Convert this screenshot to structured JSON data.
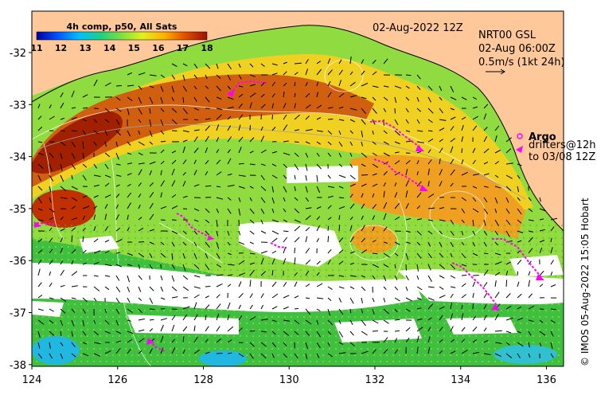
{
  "map": {
    "date_title": "02-Aug-2022 12Z",
    "product_line1": "NRT00 GSL",
    "product_line2": "02-Aug 06:00Z",
    "scale_label": "0.5m/s (1kt 24h)",
    "colorbar_title": "4h comp, p50, All Sats",
    "colorbar_ticks": [
      "11",
      "12",
      "13",
      "14",
      "15",
      "16",
      "17",
      "18"
    ],
    "legend_argo": "Argo",
    "legend_drifters_line1": "drifters@12h",
    "legend_drifters_line2": "to 03/08 12Z",
    "credit": "© IMOS 05-Aug-2022 15:05 Hobart",
    "lon_ticks": [
      "124",
      "126",
      "128",
      "130",
      "132",
      "134",
      "136"
    ],
    "lat_ticks": [
      "-32",
      "-33",
      "-34",
      "-35",
      "-36",
      "-37",
      "-38"
    ],
    "colors": {
      "land": "#fec89a",
      "no_data": "#ffffff",
      "drifter": "#ff00ff",
      "argo": "#ff00ff"
    }
  }
}
